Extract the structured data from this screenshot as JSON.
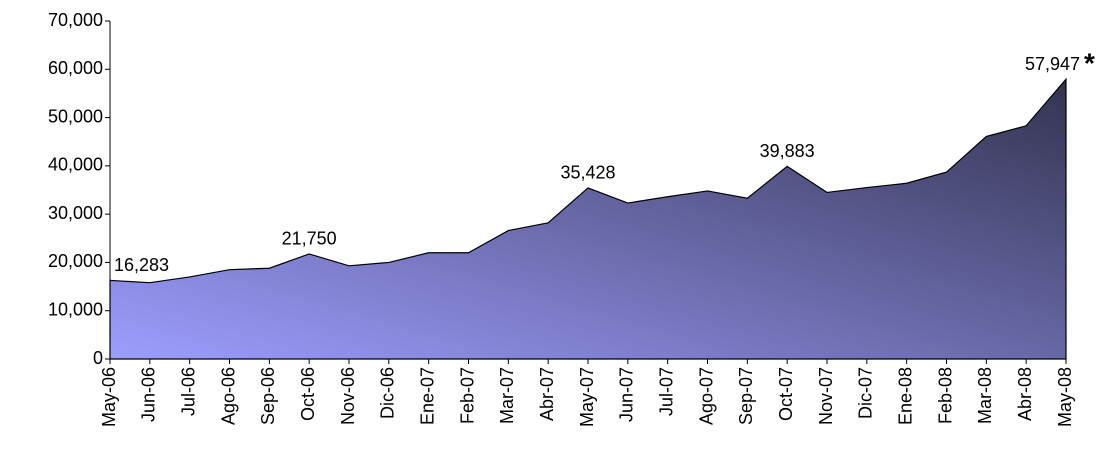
{
  "chart_data": {
    "type": "area",
    "categories": [
      "May-06",
      "Jun-06",
      "Jul-06",
      "Ago-06",
      "Sep-06",
      "Oct-06",
      "Nov-06",
      "Dic-06",
      "Ene-07",
      "Feb-07",
      "Mar-07",
      "Abr-07",
      "May-07",
      "Jun-07",
      "Jul-07",
      "Ago-07",
      "Sep-07",
      "Oct-07",
      "Nov-07",
      "Dic-07",
      "Ene-08",
      "Feb-08",
      "Mar-08",
      "Abr-08",
      "May-08"
    ],
    "values": [
      16283,
      15800,
      17000,
      18500,
      18800,
      21750,
      19300,
      20000,
      22000,
      22000,
      26600,
      28200,
      35428,
      32300,
      33600,
      34800,
      33300,
      39883,
      34500,
      35500,
      36400,
      38700,
      46100,
      48300,
      57947
    ],
    "value_labels": [
      "16,283",
      null,
      null,
      null,
      null,
      "21,750",
      null,
      null,
      null,
      null,
      null,
      null,
      "35,428",
      null,
      null,
      null,
      null,
      "39,883",
      null,
      null,
      null,
      null,
      null,
      null,
      "57,947"
    ],
    "annotation": "*",
    "color_start": "#9d9dff",
    "color_end": "#33334f",
    "ylim": [
      0,
      70000
    ],
    "yticks": [
      0,
      {
        "value": 10000,
        "label": "10,000"
      },
      {
        "value": 20000,
        "label": "20,000"
      },
      {
        "value": 30000,
        "label": "30,000"
      },
      {
        "value": 40000,
        "label": "40,000"
      },
      {
        "value": 50000,
        "label": "50,000"
      },
      {
        "value": 60000,
        "label": "60,000"
      },
      {
        "value": 70000,
        "label": "70,000"
      }
    ],
    "grid": false
  }
}
